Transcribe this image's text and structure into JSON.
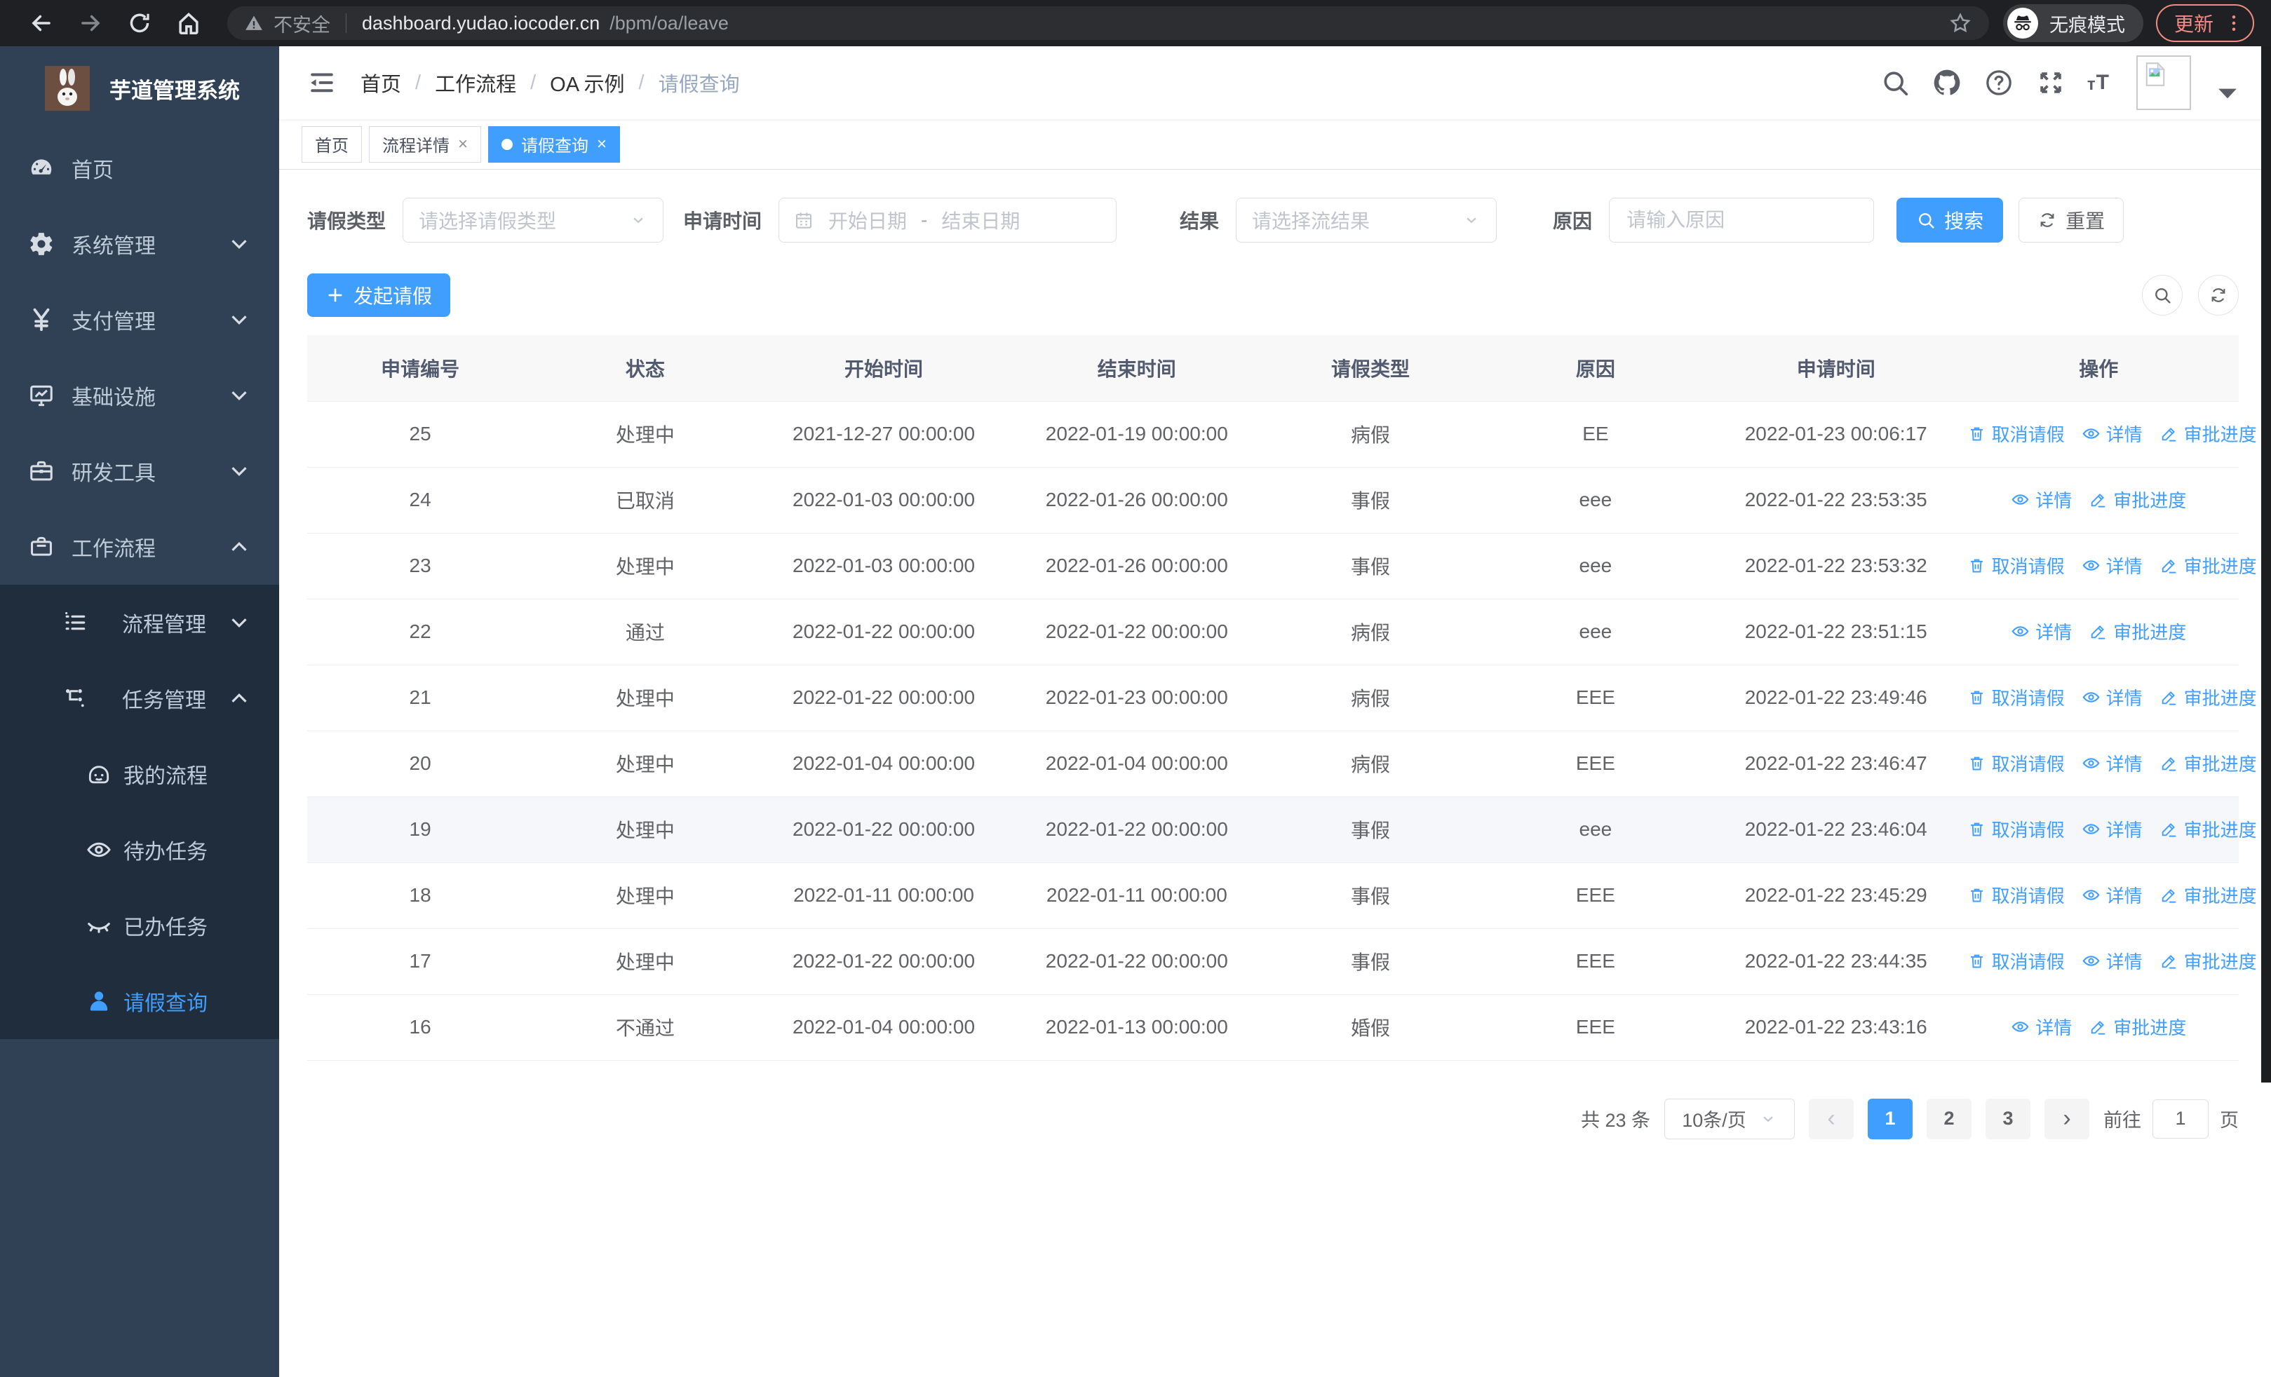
{
  "browser": {
    "security_warning": "不安全",
    "url_host": "dashboard.yudao.iocoder.cn",
    "url_path": "/bpm/oa/leave",
    "incognito_label": "无痕模式",
    "update_label": "更新"
  },
  "sidebar": {
    "title": "芋道管理系统",
    "items": [
      {
        "key": "home",
        "label": "首页",
        "icon": "dashboard",
        "level": 1
      },
      {
        "key": "system",
        "label": "系统管理",
        "icon": "gear",
        "level": 1,
        "chevron": "down"
      },
      {
        "key": "payment",
        "label": "支付管理",
        "icon": "yen",
        "level": 1,
        "chevron": "down"
      },
      {
        "key": "infra",
        "label": "基础设施",
        "icon": "monitor",
        "level": 1,
        "chevron": "down"
      },
      {
        "key": "devtools",
        "label": "研发工具",
        "icon": "toolbox",
        "level": 1,
        "chevron": "down"
      },
      {
        "key": "workflow",
        "label": "工作流程",
        "icon": "briefcase",
        "level": 1,
        "chevron": "up"
      },
      {
        "key": "process-mgmt",
        "label": "流程管理",
        "icon": "list",
        "level": 2,
        "chevron": "down",
        "submenu": true
      },
      {
        "key": "task-mgmt",
        "label": "任务管理",
        "icon": "flow",
        "level": 2,
        "chevron": "up",
        "submenu": true
      },
      {
        "key": "my-process",
        "label": "我的流程",
        "icon": "face",
        "level": 3,
        "submenu": true
      },
      {
        "key": "todo-tasks",
        "label": "待办任务",
        "icon": "eye",
        "level": 3,
        "submenu": true
      },
      {
        "key": "done-tasks",
        "label": "已办任务",
        "icon": "eye-closed",
        "level": 3,
        "submenu": true
      },
      {
        "key": "leave-query",
        "label": "请假查询",
        "icon": "person",
        "level": 3,
        "submenu": true,
        "active": true
      }
    ]
  },
  "header": {
    "breadcrumb": [
      "首页",
      "工作流程",
      "OA 示例",
      "请假查询"
    ]
  },
  "tags": [
    {
      "key": "home",
      "label": "首页"
    },
    {
      "key": "process-detail",
      "label": "流程详情",
      "closable": true
    },
    {
      "key": "leave-query",
      "label": "请假查询",
      "closable": true,
      "active": true,
      "dot": true
    }
  ],
  "filters": {
    "leave_type_label": "请假类型",
    "leave_type_placeholder": "请选择请假类型",
    "apply_time_label": "申请时间",
    "date_start_placeholder": "开始日期",
    "date_separator": "-",
    "date_end_placeholder": "结束日期",
    "result_label": "结果",
    "result_placeholder": "请选择流结果",
    "reason_label": "原因",
    "reason_placeholder": "请输入原因",
    "search_label": "搜索",
    "reset_label": "重置"
  },
  "toolbar": {
    "create_label": "发起请假"
  },
  "table": {
    "columns": [
      "申请编号",
      "状态",
      "开始时间",
      "结束时间",
      "请假类型",
      "原因",
      "申请时间",
      "操作"
    ],
    "action_labels": {
      "cancel": "取消请假",
      "detail": "详情",
      "progress": "审批进度"
    },
    "rows": [
      {
        "id": "25",
        "status": "处理中",
        "start": "2021-12-27 00:00:00",
        "end": "2022-01-19 00:00:00",
        "type": "病假",
        "reason": "EE",
        "apply_time": "2022-01-23 00:06:17",
        "actions": [
          "cancel",
          "detail",
          "progress"
        ]
      },
      {
        "id": "24",
        "status": "已取消",
        "start": "2022-01-03 00:00:00",
        "end": "2022-01-26 00:00:00",
        "type": "事假",
        "reason": "eee",
        "apply_time": "2022-01-22 23:53:35",
        "actions": [
          "detail",
          "progress"
        ]
      },
      {
        "id": "23",
        "status": "处理中",
        "start": "2022-01-03 00:00:00",
        "end": "2022-01-26 00:00:00",
        "type": "事假",
        "reason": "eee",
        "apply_time": "2022-01-22 23:53:32",
        "actions": [
          "cancel",
          "detail",
          "progress"
        ]
      },
      {
        "id": "22",
        "status": "通过",
        "start": "2022-01-22 00:00:00",
        "end": "2022-01-22 00:00:00",
        "type": "病假",
        "reason": "eee",
        "apply_time": "2022-01-22 23:51:15",
        "actions": [
          "detail",
          "progress"
        ]
      },
      {
        "id": "21",
        "status": "处理中",
        "start": "2022-01-22 00:00:00",
        "end": "2022-01-23 00:00:00",
        "type": "病假",
        "reason": "EEE",
        "apply_time": "2022-01-22 23:49:46",
        "actions": [
          "cancel",
          "detail",
          "progress"
        ]
      },
      {
        "id": "20",
        "status": "处理中",
        "start": "2022-01-04 00:00:00",
        "end": "2022-01-04 00:00:00",
        "type": "病假",
        "reason": "EEE",
        "apply_time": "2022-01-22 23:46:47",
        "actions": [
          "cancel",
          "detail",
          "progress"
        ]
      },
      {
        "id": "19",
        "status": "处理中",
        "start": "2022-01-22 00:00:00",
        "end": "2022-01-22 00:00:00",
        "type": "事假",
        "reason": "eee",
        "apply_time": "2022-01-22 23:46:04",
        "actions": [
          "cancel",
          "detail",
          "progress"
        ],
        "highlight": true
      },
      {
        "id": "18",
        "status": "处理中",
        "start": "2022-01-11 00:00:00",
        "end": "2022-01-11 00:00:00",
        "type": "事假",
        "reason": "EEE",
        "apply_time": "2022-01-22 23:45:29",
        "actions": [
          "cancel",
          "detail",
          "progress"
        ]
      },
      {
        "id": "17",
        "status": "处理中",
        "start": "2022-01-22 00:00:00",
        "end": "2022-01-22 00:00:00",
        "type": "事假",
        "reason": "EEE",
        "apply_time": "2022-01-22 23:44:35",
        "actions": [
          "cancel",
          "detail",
          "progress"
        ]
      },
      {
        "id": "16",
        "status": "不通过",
        "start": "2022-01-04 00:00:00",
        "end": "2022-01-13 00:00:00",
        "type": "婚假",
        "reason": "EEE",
        "apply_time": "2022-01-22 23:43:16",
        "actions": [
          "detail",
          "progress"
        ]
      }
    ]
  },
  "pagination": {
    "total_text": "共 23 条",
    "page_size": "10条/页",
    "prev": "‹",
    "next": "›",
    "pages": [
      "1",
      "2",
      "3"
    ],
    "active_page": "1",
    "goto_label": "前往",
    "goto_value": "1",
    "goto_suffix": "页"
  },
  "colors": {
    "accent": "#409eff",
    "sidebar_bg": "#304156",
    "submenu_bg": "#1f2d3d",
    "sidebar_text": "#bfcbd9",
    "chrome_bg": "#1f2023",
    "update_red": "#f28b82",
    "table_header_bg": "#f8f8f9",
    "header_text": "#515a6e",
    "cell_text": "#606266",
    "highlight_row": "#f5f7fa",
    "pager_bg": "#f4f4f5",
    "border": "#dcdfe6",
    "placeholder": "#c0c4cc"
  }
}
